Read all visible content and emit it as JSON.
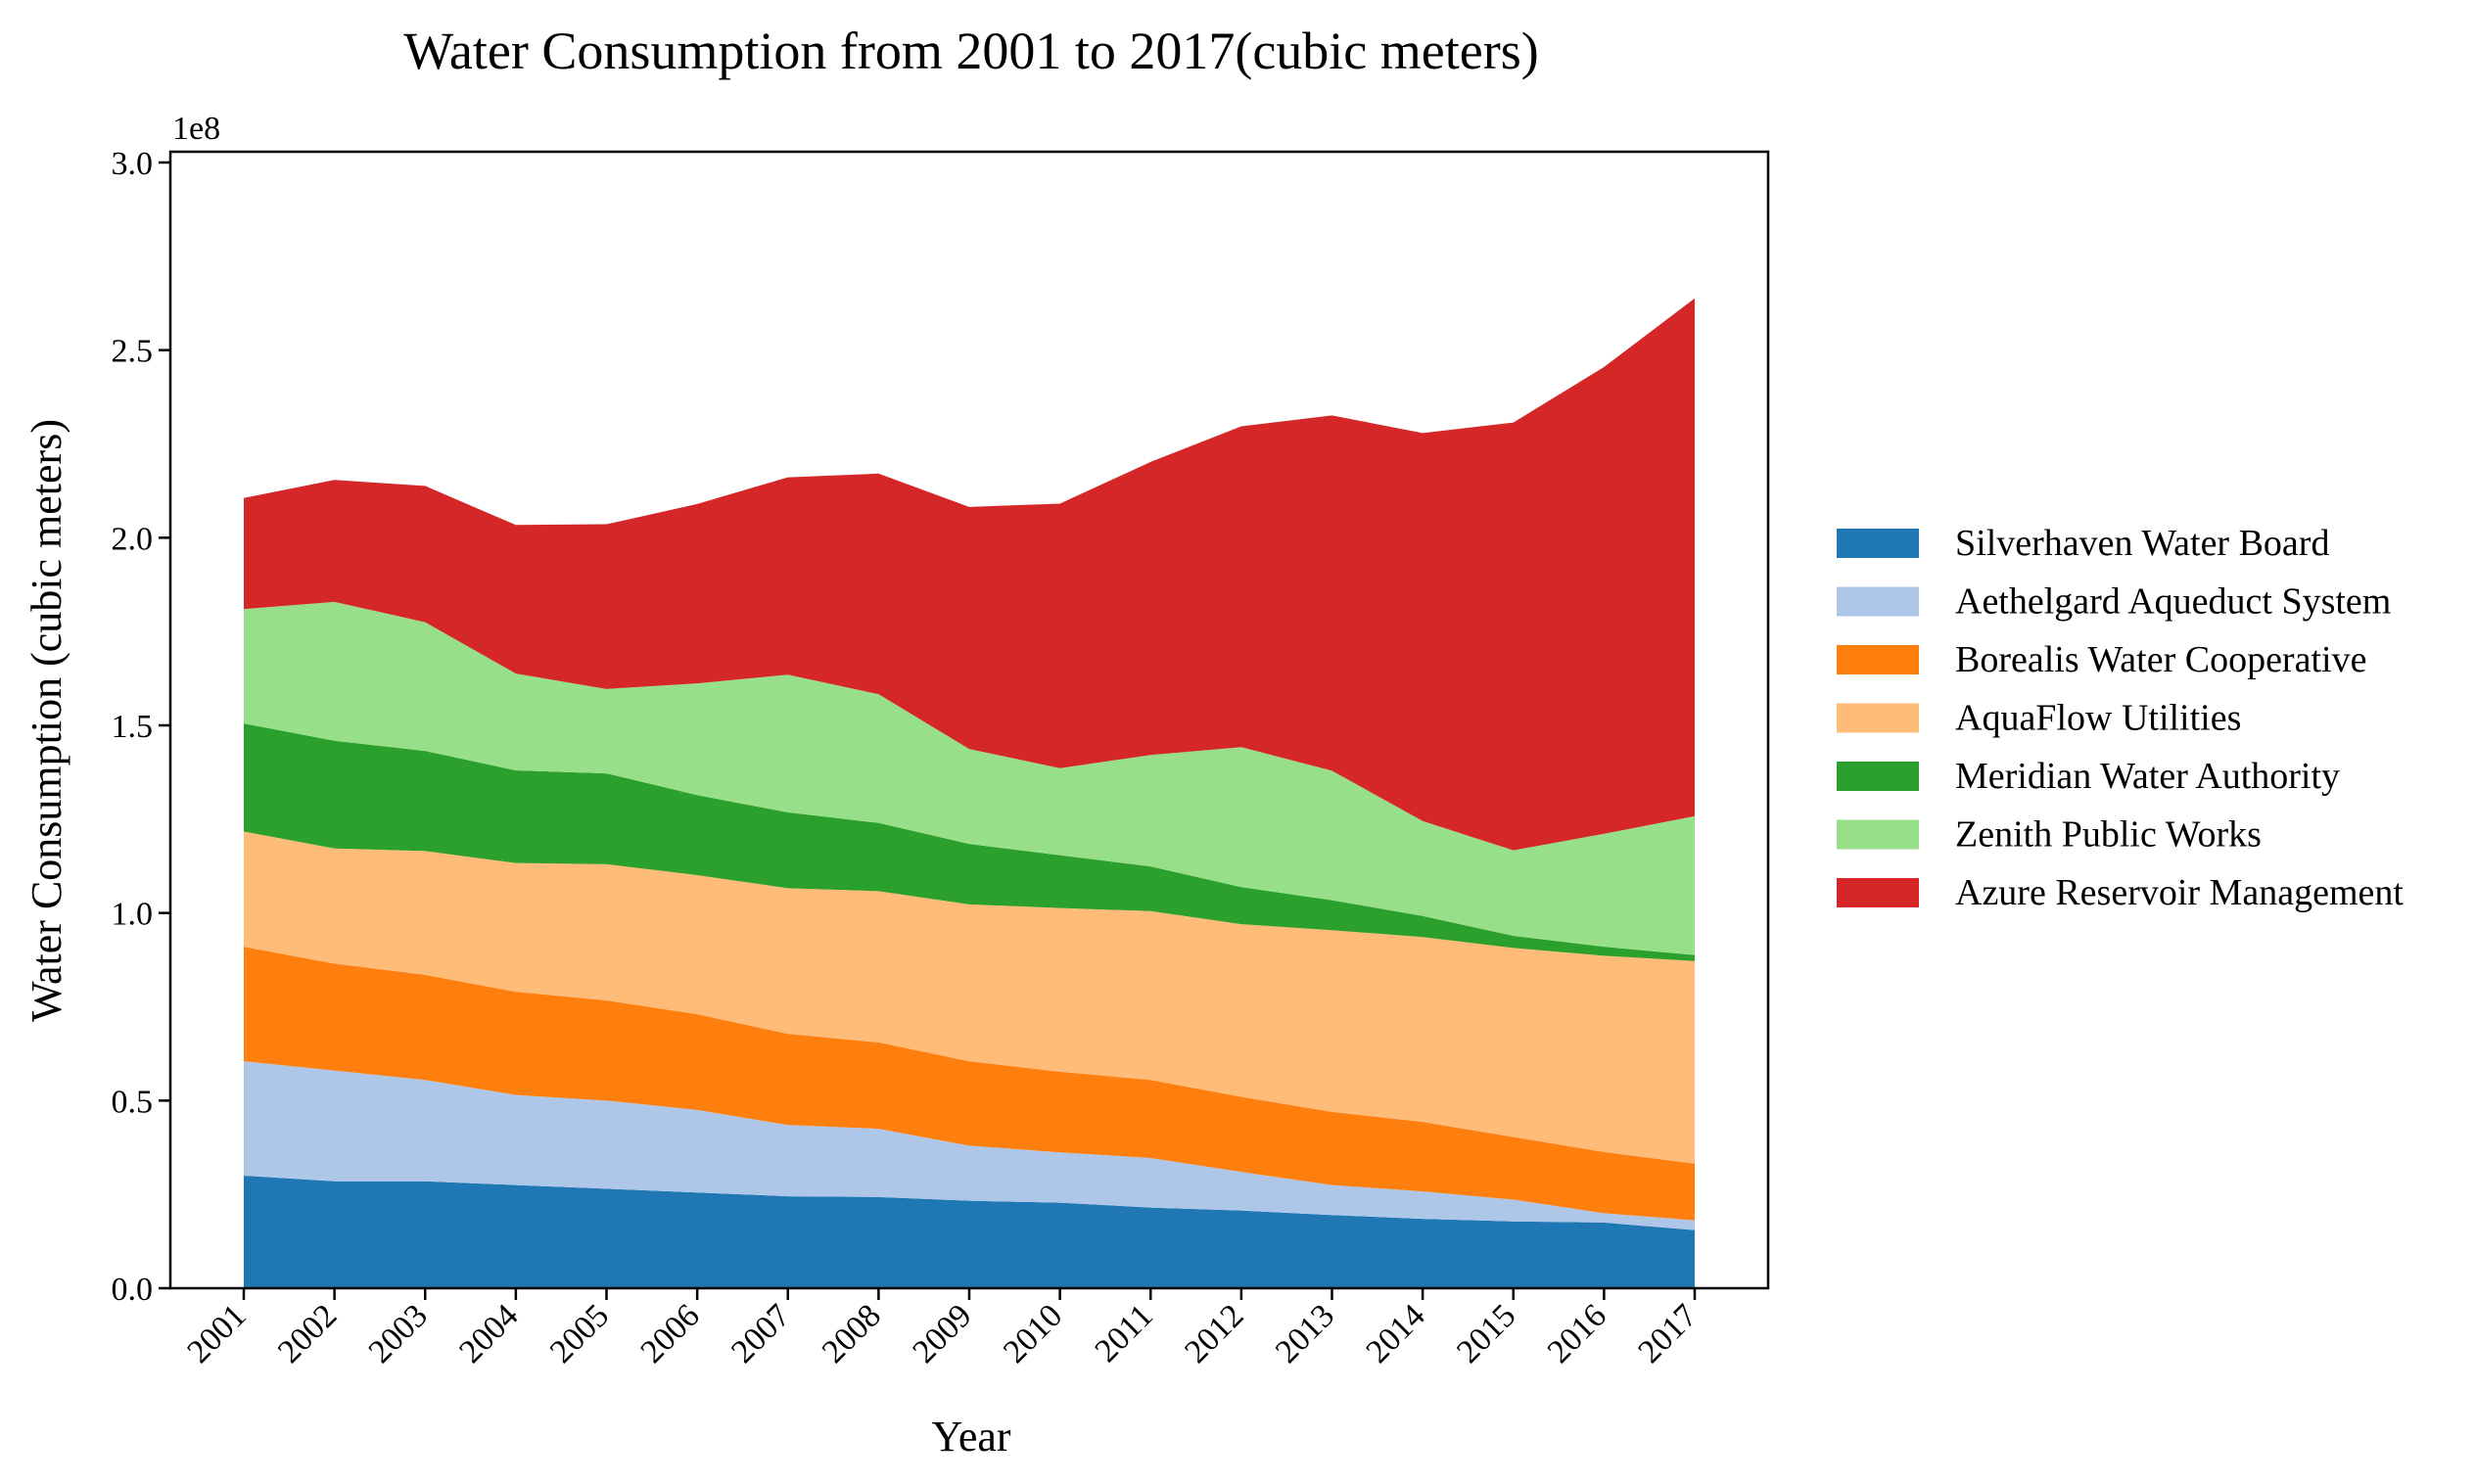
{
  "chart_data": {
    "type": "area",
    "stacked": true,
    "title": "Water Consumption from 2001 to 2017(cubic meters)",
    "xlabel": "Year",
    "ylabel": "Water Consumption (cubic meters)",
    "y_offset_label": "1e8",
    "ylim": [
      0,
      300000000
    ],
    "y_ticks": [
      0,
      50000000,
      100000000,
      150000000,
      200000000,
      250000000,
      300000000
    ],
    "y_tick_labels": [
      "0.0",
      "0.5",
      "1.0",
      "1.5",
      "2.0",
      "2.5",
      "3.0"
    ],
    "x": [
      "2001",
      "2002",
      "2003",
      "2004",
      "2005",
      "2006",
      "2007",
      "2008",
      "2009",
      "2010",
      "2011",
      "2012",
      "2013",
      "2014",
      "2015",
      "2016",
      "2017"
    ],
    "grid": false,
    "legend_position": "right",
    "series": [
      {
        "name": "Silverhaven Water Board",
        "color": "#1f77b4",
        "values": [
          30000000,
          28500000,
          28500000,
          27500000,
          26500000,
          25500000,
          24500000,
          24300000,
          23300000,
          22800000,
          21500000,
          20700000,
          19500000,
          18500000,
          17800000,
          17500000,
          15500000
        ]
      },
      {
        "name": "Aethelgard Aqueduct System",
        "color": "#aec7e8",
        "values": [
          30500000,
          29500000,
          27000000,
          24000000,
          23500000,
          22000000,
          19000000,
          18200000,
          14700000,
          13400000,
          13200000,
          10300000,
          8000000,
          7300000,
          5800000,
          2500000,
          2600000
        ]
      },
      {
        "name": "Borealis Water Cooperative",
        "color": "#ff7f0e",
        "values": [
          30500000,
          28500000,
          28000000,
          27500000,
          26700000,
          25500000,
          24300000,
          23000000,
          22500000,
          21500000,
          20800000,
          20000000,
          19500000,
          18500000,
          16700000,
          16300000,
          15100000
        ]
      },
      {
        "name": "AquaFlow Utilities",
        "color": "#ffbb78",
        "values": [
          30700000,
          30700000,
          33000000,
          34300000,
          36300000,
          37100000,
          38800000,
          40300000,
          41800000,
          43600000,
          45000000,
          46000000,
          48400000,
          49300000,
          50400000,
          52300000,
          54000000
        ]
      },
      {
        "name": "Meridian Water Authority",
        "color": "#2ca02c",
        "values": [
          28800000,
          28700000,
          26700000,
          24700000,
          24200000,
          21300000,
          20200000,
          18200000,
          16100000,
          14100000,
          11900000,
          9900000,
          8000000,
          5600000,
          3200000,
          2400000,
          1600000
        ]
      },
      {
        "name": "Zenith Public Works",
        "color": "#98df8a",
        "values": [
          30500000,
          37000000,
          34300000,
          25800000,
          22500000,
          29800000,
          36700000,
          34300000,
          25300000,
          23200000,
          29700000,
          37300000,
          34500000,
          25300000,
          22800000,
          30100000,
          37000000
        ]
      },
      {
        "name": "Azure Reservoir Management",
        "color": "#d62728",
        "values": [
          29600000,
          32500000,
          36300000,
          39600000,
          43900000,
          47800000,
          52600000,
          58800000,
          64500000,
          70500000,
          78100000,
          85500000,
          94700000,
          103400000,
          114000000,
          124400000,
          138000000
        ]
      }
    ]
  }
}
